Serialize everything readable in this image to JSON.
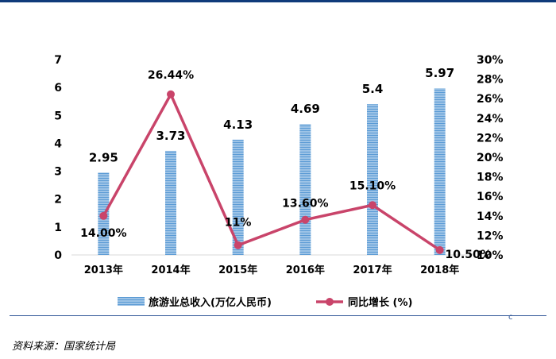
{
  "chart_data": {
    "type": "bar+line",
    "categories": [
      "2013年",
      "2014年",
      "2015年",
      "2016年",
      "2017年",
      "2018年"
    ],
    "series": [
      {
        "name": "旅游业总收入(万亿人民币)",
        "type": "bar",
        "axis": "left",
        "values": [
          2.95,
          3.73,
          4.13,
          4.69,
          5.4,
          5.97
        ],
        "labels": [
          "2.95",
          "3.73",
          "4.13",
          "4.69",
          "5.4",
          "5.97"
        ],
        "color": "#9dc3e6"
      },
      {
        "name": "同比增长 (%)",
        "type": "line",
        "axis": "right",
        "values": [
          14.0,
          26.44,
          11.0,
          13.6,
          15.1,
          10.5
        ],
        "labels": [
          "14.00%",
          "26.44%",
          "11%",
          "13.60%",
          "15.10%",
          "10.50%"
        ],
        "color": "#c9446a"
      }
    ],
    "y_left": {
      "min": 0,
      "max": 7,
      "ticks": [
        "0",
        "1",
        "2",
        "3",
        "4",
        "5",
        "6",
        "7"
      ]
    },
    "y_right": {
      "min": 10,
      "max": 30,
      "ticks": [
        "10%",
        "12%",
        "14%",
        "16%",
        "18%",
        "20%",
        "22%",
        "24%",
        "26%",
        "28%",
        "30%"
      ]
    },
    "legend": [
      "旅游业总收入(万亿人民币)",
      "同比增长 (%)"
    ],
    "legend_position": "bottom",
    "grid": false
  },
  "source_text": "资料来源：国家统计局",
  "corner_mark": "c"
}
